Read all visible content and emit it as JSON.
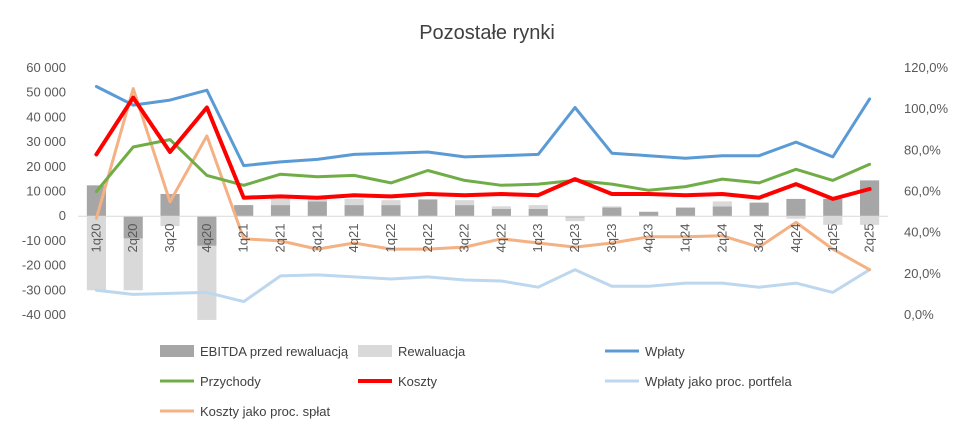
{
  "chart_data": {
    "type": "bar+line",
    "title": "Pozostałe rynki",
    "categories": [
      "1q20",
      "2q20",
      "3q20",
      "4q20",
      "1q21",
      "2q21",
      "3q21",
      "4q21",
      "1q22",
      "2q22",
      "3q22",
      "4q22",
      "1q23",
      "2q23",
      "3q23",
      "4q23",
      "1q24",
      "2q24",
      "3q24",
      "4q24",
      "1q25",
      "2q25"
    ],
    "left_axis": {
      "min": -40000,
      "max": 60000,
      "step": 10000,
      "tick_labels": [
        "-40 000",
        "-30 000",
        "-20 000",
        "-10 000",
        "0",
        "10 000",
        "20 000",
        "30 000",
        "40 000",
        "50 000",
        "60 000"
      ]
    },
    "right_axis": {
      "min": 0,
      "max": 1.2,
      "step": 0.2,
      "tick_labels": [
        "0,0%",
        "20,0%",
        "40,0%",
        "60,0%",
        "80,0%",
        "100,0%",
        "120,0%"
      ]
    },
    "bar_series": [
      {
        "name": "EBITDA przed rewaluacją",
        "color": "#a6a6a6",
        "axis": "left",
        "values": [
          12500,
          -9000,
          9000,
          -12000,
          4500,
          4500,
          6000,
          4500,
          4500,
          6800,
          4500,
          3000,
          3000,
          -500,
          3500,
          1800,
          3500,
          4000,
          5500,
          7000,
          7000,
          14500
        ]
      },
      {
        "name": "Rewaluacja",
        "color": "#d9d9d9",
        "axis": "left",
        "values": [
          -30000,
          -21000,
          -4000,
          -30000,
          0,
          3500,
          1000,
          2500,
          2000,
          0,
          2000,
          1000,
          1500,
          -1500,
          500,
          0,
          0,
          2000,
          0,
          -1000,
          -3500,
          -3500
        ]
      }
    ],
    "line_series": [
      {
        "name": "Wpłaty",
        "color": "#5b9bd5",
        "axis": "left",
        "width": 3,
        "values": [
          52500,
          45000,
          47000,
          51000,
          20500,
          22000,
          23000,
          25000,
          25500,
          26000,
          24000,
          24500,
          25000,
          44000,
          25500,
          24500,
          23500,
          24500,
          24500,
          30000,
          24000,
          47500
        ]
      },
      {
        "name": "Przychody",
        "color": "#70ad47",
        "axis": "left",
        "width": 3,
        "values": [
          10000,
          28000,
          31000,
          16500,
          12500,
          17000,
          16000,
          16500,
          13500,
          18500,
          14500,
          12500,
          13000,
          14500,
          13000,
          10500,
          12000,
          15000,
          13500,
          19000,
          14500,
          21000
        ]
      },
      {
        "name": "Koszty",
        "color": "#ff0000",
        "axis": "left",
        "width": 4,
        "values": [
          25000,
          48000,
          26000,
          44000,
          7500,
          8000,
          7500,
          8500,
          8000,
          9000,
          8500,
          9000,
          8500,
          15000,
          9000,
          9000,
          8500,
          9000,
          7500,
          13000,
          7000,
          11000
        ]
      },
      {
        "name": "Wpłaty jako proc. portfela",
        "color": "#bdd7ee",
        "axis": "right",
        "width": 3,
        "values": [
          0.12,
          0.1,
          0.105,
          0.11,
          0.065,
          0.19,
          0.195,
          0.185,
          0.175,
          0.185,
          0.17,
          0.165,
          0.135,
          0.22,
          0.14,
          0.14,
          0.155,
          0.155,
          0.135,
          0.155,
          0.11,
          0.22
        ]
      },
      {
        "name": "Koszty jako proc. spłat",
        "color": "#f4b183",
        "axis": "right",
        "width": 3,
        "values": [
          0.47,
          1.1,
          0.55,
          0.87,
          0.37,
          0.36,
          0.32,
          0.35,
          0.32,
          0.32,
          0.33,
          0.37,
          0.35,
          0.33,
          0.35,
          0.38,
          0.38,
          0.385,
          0.33,
          0.45,
          0.32,
          0.22
        ]
      }
    ],
    "legend": [
      "EBITDA przed rewaluacją",
      "Rewaluacja",
      "Wpłaty",
      "Przychody",
      "Koszty",
      "Wpłaty jako proc. portfela",
      "Koszty jako proc. spłat"
    ],
    "legend_placement": "bottom",
    "grid": false
  }
}
